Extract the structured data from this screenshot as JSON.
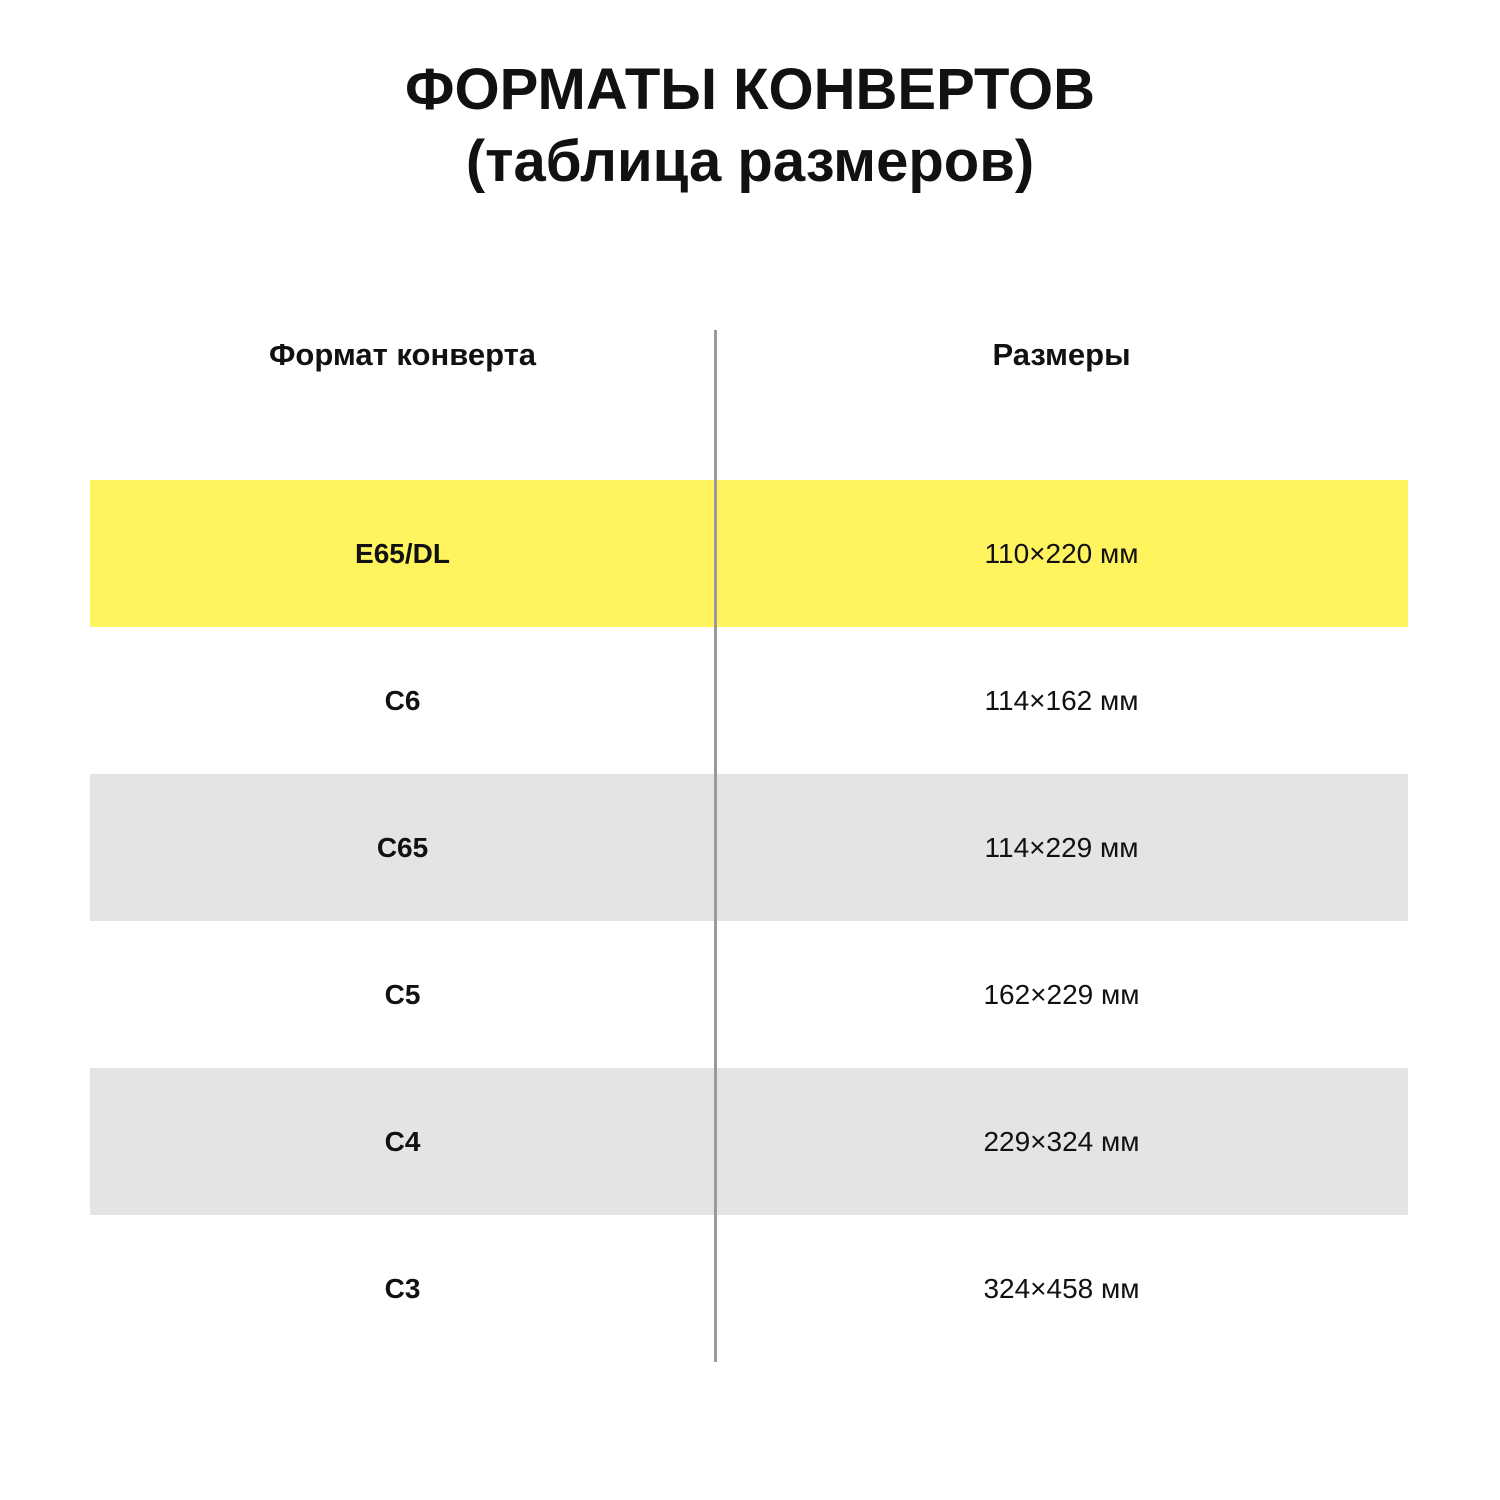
{
  "title": {
    "line1": "ФОРМАТЫ КОНВЕРТОВ",
    "line2": "(таблица размеров)"
  },
  "table": {
    "headers": [
      "Формат конверта",
      "Размеры"
    ],
    "rows": [
      {
        "format": "E65/DL",
        "size": "110×220 мм",
        "bg": "#fff35e"
      },
      {
        "format": "C6",
        "size": "114×162 мм",
        "bg": "#ffffff"
      },
      {
        "format": "C65",
        "size": "114×229 мм",
        "bg": "#e4e4e6"
      },
      {
        "format": "C5",
        "size": "162×229 мм",
        "bg": "#ffffff"
      },
      {
        "format": "C4",
        "size": "229×324 мм",
        "bg": "#e4e4e6"
      },
      {
        "format": "C3",
        "size": "324×458 мм",
        "bg": "#ffffff"
      }
    ]
  }
}
